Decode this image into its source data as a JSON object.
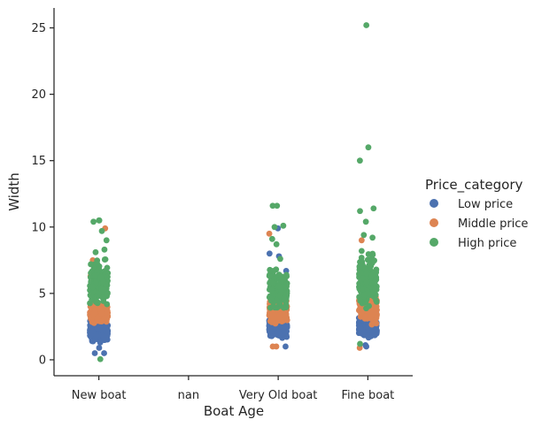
{
  "chart_data": {
    "type": "scatter",
    "subtype": "strip",
    "xlabel": "Boat Age",
    "ylabel": "Width",
    "categories": [
      "New boat",
      "nan",
      "Very Old boat",
      "Fine boat"
    ],
    "yticks": [
      0,
      5,
      10,
      15,
      20,
      25
    ],
    "ylim": [
      -1.2,
      26.5
    ],
    "grid": false,
    "legend": {
      "title": "Price_category",
      "placement": "right",
      "entries": [
        "Low price",
        "Middle price",
        "High price"
      ]
    },
    "series": [
      {
        "name": "Low price",
        "color": "#4c72b0",
        "bands": [
          {
            "category": "New boat",
            "ymin": 1.2,
            "ymax": 3.0,
            "count": 220
          },
          {
            "category": "Very Old boat",
            "ymin": 1.5,
            "ymax": 3.4,
            "count": 260
          },
          {
            "category": "Fine boat",
            "ymin": 1.5,
            "ymax": 3.3,
            "count": 260
          }
        ],
        "outliers": [
          {
            "category": "New boat",
            "y": 0.5
          },
          {
            "category": "New boat",
            "y": 0.5
          },
          {
            "category": "New boat",
            "y": 0.9
          },
          {
            "category": "Very Old boat",
            "y": 1.0
          },
          {
            "category": "Very Old boat",
            "y": 5.0
          },
          {
            "category": "Very Old boat",
            "y": 6.7
          },
          {
            "category": "Very Old boat",
            "y": 7.8
          },
          {
            "category": "Very Old boat",
            "y": 8.0
          },
          {
            "category": "Very Old boat",
            "y": 9.9
          },
          {
            "category": "Fine boat",
            "y": 1.0
          },
          {
            "category": "Fine boat",
            "y": 4.3
          },
          {
            "category": "Fine boat",
            "y": 1.1
          }
        ]
      },
      {
        "name": "Middle price",
        "color": "#dd8452",
        "bands": [
          {
            "category": "New boat",
            "ymin": 2.5,
            "ymax": 4.5,
            "count": 170
          },
          {
            "category": "Very Old boat",
            "ymin": 2.5,
            "ymax": 5.0,
            "count": 200
          },
          {
            "category": "Fine boat",
            "ymin": 2.5,
            "ymax": 5.5,
            "count": 220
          }
        ],
        "outliers": [
          {
            "category": "New boat",
            "y": 9.9
          },
          {
            "category": "New boat",
            "y": 7.5
          },
          {
            "category": "New boat",
            "y": 6.3
          },
          {
            "category": "Very Old boat",
            "y": 9.5
          },
          {
            "category": "Very Old boat",
            "y": 6.0
          },
          {
            "category": "Very Old boat",
            "y": 1.0
          },
          {
            "category": "Very Old boat",
            "y": 1.0
          },
          {
            "category": "Fine boat",
            "y": 9.0
          },
          {
            "category": "Fine boat",
            "y": 0.9
          },
          {
            "category": "Fine boat",
            "y": 6.3
          }
        ]
      },
      {
        "name": "High price",
        "color": "#55a868",
        "bands": [
          {
            "category": "New boat",
            "ymin": 3.5,
            "ymax": 8.0,
            "count": 140
          },
          {
            "category": "Very Old boat",
            "ymin": 3.5,
            "ymax": 7.2,
            "count": 150
          },
          {
            "category": "Fine boat",
            "ymin": 3.5,
            "ymax": 8.6,
            "count": 180
          }
        ],
        "outliers": [
          {
            "category": "New boat",
            "y": 10.5
          },
          {
            "category": "New boat",
            "y": 10.5
          },
          {
            "category": "New boat",
            "y": 10.4
          },
          {
            "category": "New boat",
            "y": 9.7
          },
          {
            "category": "New boat",
            "y": 9.0
          },
          {
            "category": "New boat",
            "y": 8.3
          },
          {
            "category": "New boat",
            "y": 8.1
          },
          {
            "category": "New boat",
            "y": 0.05
          },
          {
            "category": "Very Old boat",
            "y": 11.6
          },
          {
            "category": "Very Old boat",
            "y": 11.6
          },
          {
            "category": "Very Old boat",
            "y": 10.1
          },
          {
            "category": "Very Old boat",
            "y": 10.0
          },
          {
            "category": "Very Old boat",
            "y": 9.1
          },
          {
            "category": "Very Old boat",
            "y": 8.7
          },
          {
            "category": "Very Old boat",
            "y": 7.6
          },
          {
            "category": "Fine boat",
            "y": 25.2
          },
          {
            "category": "Fine boat",
            "y": 16.0
          },
          {
            "category": "Fine boat",
            "y": 15.0
          },
          {
            "category": "Fine boat",
            "y": 11.4
          },
          {
            "category": "Fine boat",
            "y": 11.2
          },
          {
            "category": "Fine boat",
            "y": 10.4
          },
          {
            "category": "Fine boat",
            "y": 9.4
          },
          {
            "category": "Fine boat",
            "y": 9.2
          },
          {
            "category": "Fine boat",
            "y": 1.2
          }
        ]
      }
    ]
  }
}
